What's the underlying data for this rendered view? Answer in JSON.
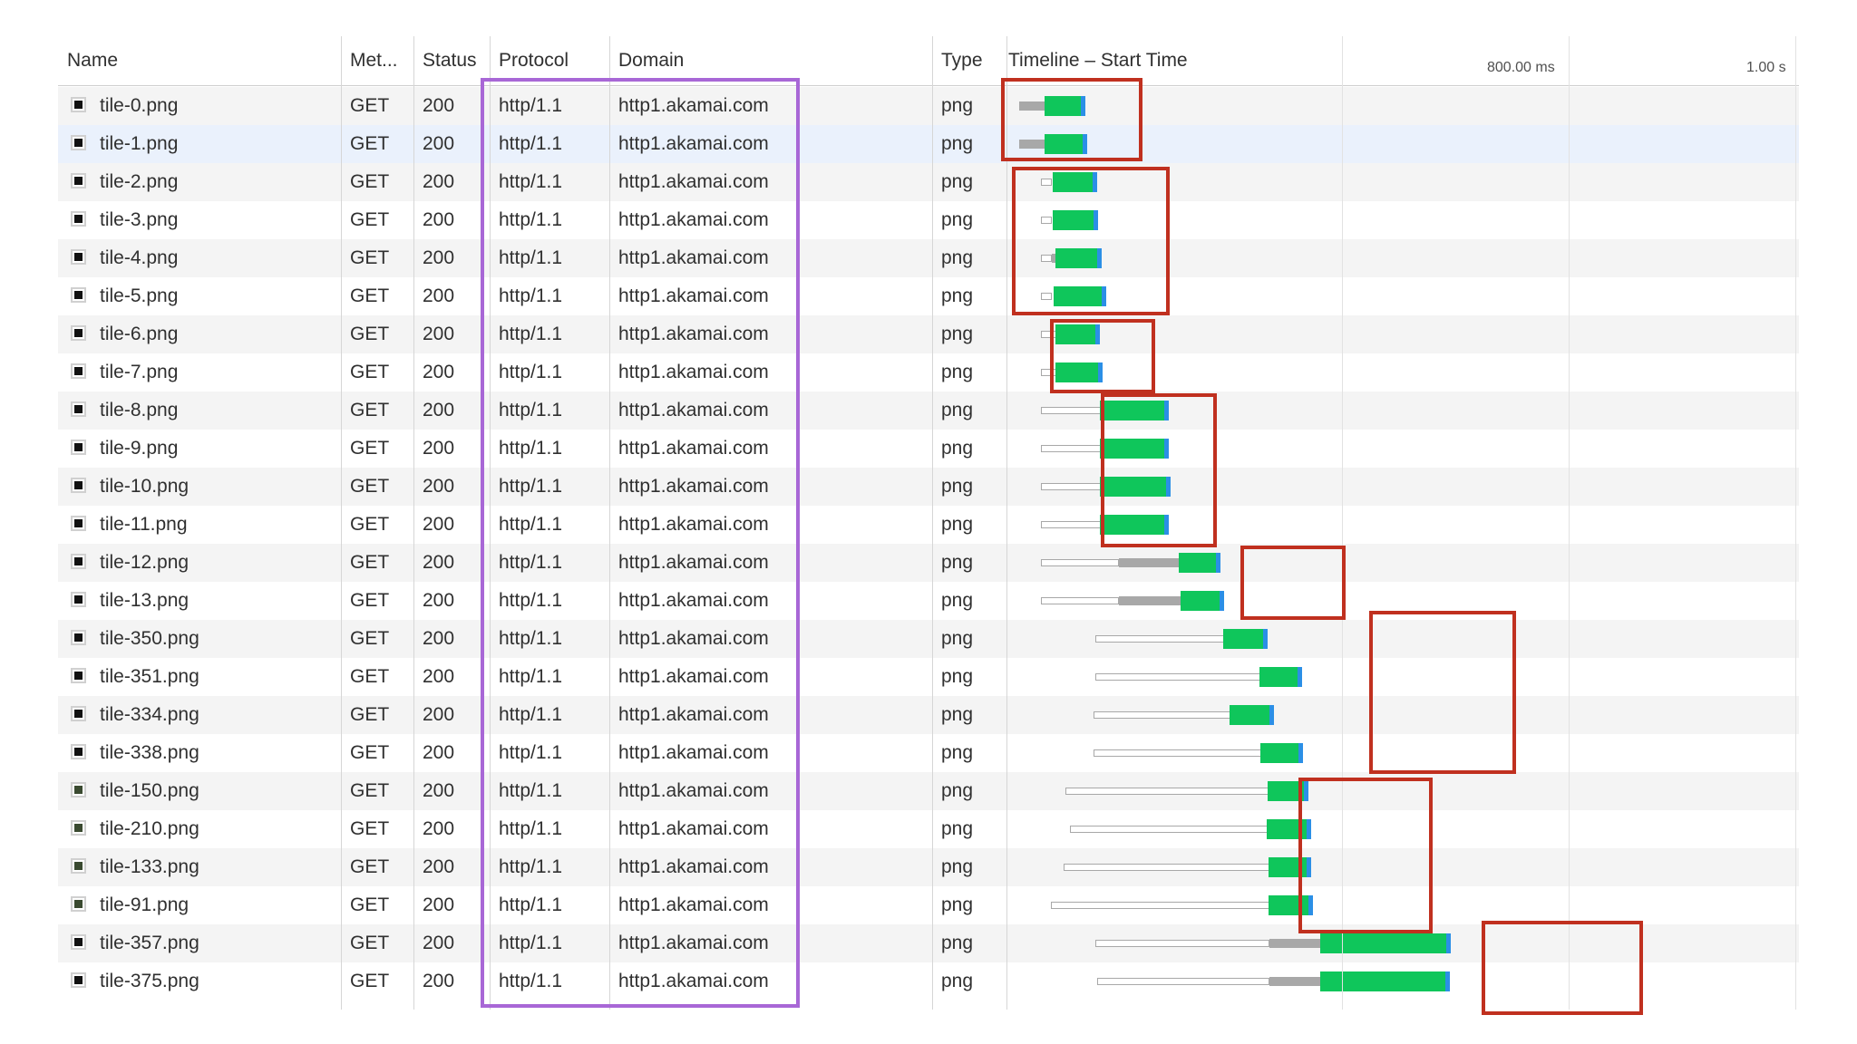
{
  "columns": {
    "name": "Name",
    "method": "Met...",
    "status": "Status",
    "protocol": "Protocol",
    "domain": "Domain",
    "type": "Type",
    "timeline": "Timeline – Start Time"
  },
  "timeline_ticks": {
    "tick_800": "800.00 ms",
    "tick_1000": "1.00 s"
  },
  "colors": {
    "waiting": "#0fc65b",
    "receiving": "#2b8fe6",
    "stalled": "#a8a8a8",
    "highlight_timing": "#c0301f",
    "highlight_protocol": "#a867d6",
    "selected_row": "#eaf1fc"
  },
  "requests": [
    {
      "name": "tile-0.png",
      "method": "GET",
      "status": "200",
      "protocol": "http/1.1",
      "domain": "http1.akamai.com",
      "type": "png"
    },
    {
      "name": "tile-1.png",
      "method": "GET",
      "status": "200",
      "protocol": "http/1.1",
      "domain": "http1.akamai.com",
      "type": "png"
    },
    {
      "name": "tile-2.png",
      "method": "GET",
      "status": "200",
      "protocol": "http/1.1",
      "domain": "http1.akamai.com",
      "type": "png"
    },
    {
      "name": "tile-3.png",
      "method": "GET",
      "status": "200",
      "protocol": "http/1.1",
      "domain": "http1.akamai.com",
      "type": "png"
    },
    {
      "name": "tile-4.png",
      "method": "GET",
      "status": "200",
      "protocol": "http/1.1",
      "domain": "http1.akamai.com",
      "type": "png"
    },
    {
      "name": "tile-5.png",
      "method": "GET",
      "status": "200",
      "protocol": "http/1.1",
      "domain": "http1.akamai.com",
      "type": "png"
    },
    {
      "name": "tile-6.png",
      "method": "GET",
      "status": "200",
      "protocol": "http/1.1",
      "domain": "http1.akamai.com",
      "type": "png"
    },
    {
      "name": "tile-7.png",
      "method": "GET",
      "status": "200",
      "protocol": "http/1.1",
      "domain": "http1.akamai.com",
      "type": "png"
    },
    {
      "name": "tile-8.png",
      "method": "GET",
      "status": "200",
      "protocol": "http/1.1",
      "domain": "http1.akamai.com",
      "type": "png"
    },
    {
      "name": "tile-9.png",
      "method": "GET",
      "status": "200",
      "protocol": "http/1.1",
      "domain": "http1.akamai.com",
      "type": "png"
    },
    {
      "name": "tile-10.png",
      "method": "GET",
      "status": "200",
      "protocol": "http/1.1",
      "domain": "http1.akamai.com",
      "type": "png"
    },
    {
      "name": "tile-11.png",
      "method": "GET",
      "status": "200",
      "protocol": "http/1.1",
      "domain": "http1.akamai.com",
      "type": "png"
    },
    {
      "name": "tile-12.png",
      "method": "GET",
      "status": "200",
      "protocol": "http/1.1",
      "domain": "http1.akamai.com",
      "type": "png"
    },
    {
      "name": "tile-13.png",
      "method": "GET",
      "status": "200",
      "protocol": "http/1.1",
      "domain": "http1.akamai.com",
      "type": "png"
    },
    {
      "name": "tile-350.png",
      "method": "GET",
      "status": "200",
      "protocol": "http/1.1",
      "domain": "http1.akamai.com",
      "type": "png"
    },
    {
      "name": "tile-351.png",
      "method": "GET",
      "status": "200",
      "protocol": "http/1.1",
      "domain": "http1.akamai.com",
      "type": "png"
    },
    {
      "name": "tile-334.png",
      "method": "GET",
      "status": "200",
      "protocol": "http/1.1",
      "domain": "http1.akamai.com",
      "type": "png"
    },
    {
      "name": "tile-338.png",
      "method": "GET",
      "status": "200",
      "protocol": "http/1.1",
      "domain": "http1.akamai.com",
      "type": "png"
    },
    {
      "name": "tile-150.png",
      "method": "GET",
      "status": "200",
      "protocol": "http/1.1",
      "domain": "http1.akamai.com",
      "type": "png"
    },
    {
      "name": "tile-210.png",
      "method": "GET",
      "status": "200",
      "protocol": "http/1.1",
      "domain": "http1.akamai.com",
      "type": "png"
    },
    {
      "name": "tile-133.png",
      "method": "GET",
      "status": "200",
      "protocol": "http/1.1",
      "domain": "http1.akamai.com",
      "type": "png"
    },
    {
      "name": "tile-91.png",
      "method": "GET",
      "status": "200",
      "protocol": "http/1.1",
      "domain": "http1.akamai.com",
      "type": "png"
    },
    {
      "name": "tile-357.png",
      "method": "GET",
      "status": "200",
      "protocol": "http/1.1",
      "domain": "http1.akamai.com",
      "type": "png"
    },
    {
      "name": "tile-375.png",
      "method": "GET",
      "status": "200",
      "protocol": "http/1.1",
      "domain": "http1.akamai.com",
      "type": "png"
    }
  ]
}
